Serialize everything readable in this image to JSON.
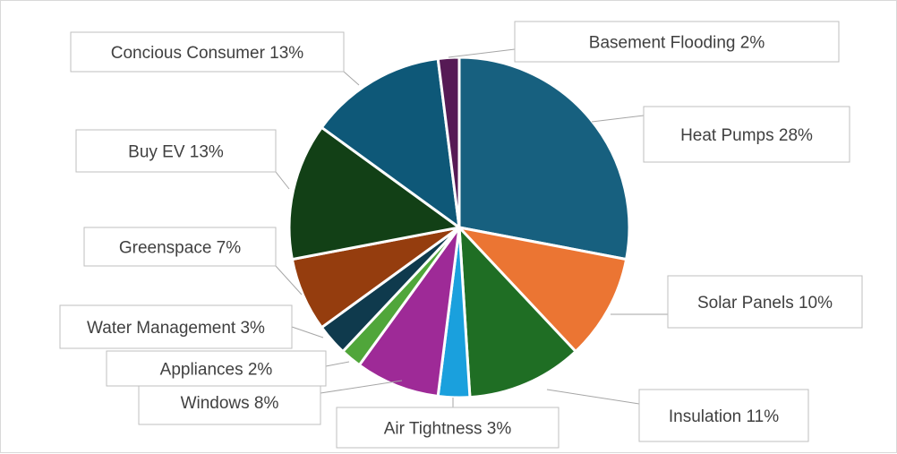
{
  "chart_data": {
    "type": "pie",
    "title": "",
    "start_angle_deg": 0,
    "direction": "clockwise",
    "legend": "none",
    "slices": [
      {
        "label": "Heat Pumps",
        "pct_label": "28%",
        "value": 28,
        "color": "#17607F"
      },
      {
        "label": "Solar Panels",
        "pct_label": "10%",
        "value": 10,
        "color": "#EB7533"
      },
      {
        "label": "Insulation",
        "pct_label": "11%",
        "value": 11,
        "color": "#1F6E24"
      },
      {
        "label": "Air Tightness",
        "pct_label": "3%",
        "value": 3,
        "color": "#1AA0DD"
      },
      {
        "label": "Windows",
        "pct_label": "8%",
        "value": 8,
        "color": "#9E2A97"
      },
      {
        "label": "Appliances",
        "pct_label": "2%",
        "value": 2,
        "color": "#50A63A"
      },
      {
        "label": "Water Management",
        "pct_label": "3%",
        "value": 3,
        "color": "#0F3A4D"
      },
      {
        "label": "Greenspace",
        "pct_label": "7%",
        "value": 7,
        "color": "#953D0E"
      },
      {
        "label": "Buy EV",
        "pct_label": "13%",
        "value": 13,
        "color": "#124016"
      },
      {
        "label": "Concious Consumer",
        "pct_label": "13%",
        "value": 13,
        "color": "#0E5878"
      },
      {
        "label": "Basement Flooding",
        "pct_label": "2%",
        "value": 2,
        "color": "#561A55"
      }
    ]
  }
}
